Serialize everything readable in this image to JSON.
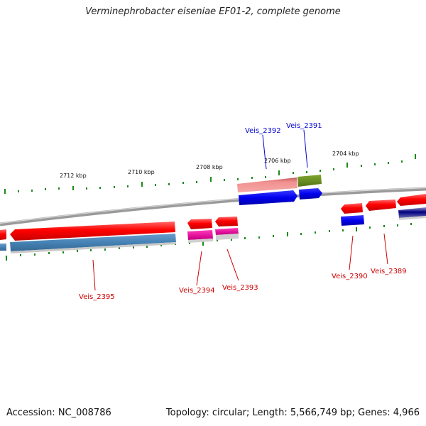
{
  "title": "Verminephrobacter eiseniae EF01-2, complete genome",
  "footer": {
    "accession": "Accession: NC_008786",
    "summary": "Topology: circular; Length: 5,566,749 bp; Genes: 4,966"
  },
  "scale": {
    "tick_labels": [
      "2712 kbp",
      "2710 kbp",
      "2708 kbp",
      "2706 kbp",
      "2704 kbp"
    ]
  },
  "genes": {
    "forward_labels": [
      "Veis_2392",
      "Veis_2391"
    ],
    "reverse_labels": [
      "Veis_2395",
      "Veis_2394",
      "Veis_2393",
      "Veis_2390",
      "Veis_2389"
    ]
  },
  "colors": {
    "forward_label": "#0000cc",
    "reverse_label": "#cc0000",
    "red_gene": "#ff0000",
    "blue_gene": "#0000ee",
    "steel_gene": "#4682b4",
    "pink_gene": "#f08080",
    "olive_gene": "#6b8e23",
    "magenta_gene": "#e0109a",
    "backbone": "#8c8c8c",
    "tick": "#1a8a1a"
  }
}
